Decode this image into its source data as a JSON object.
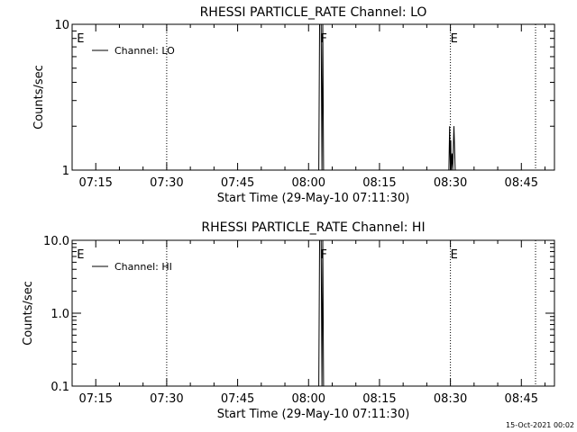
{
  "footer_timestamp": "15-Oct-2021 00:02",
  "chart_data": [
    {
      "type": "line",
      "title": "RHESSI PARTICLE_RATE Channel: LO",
      "xlabel": "Start Time (29-May-10 07:11:30)",
      "ylabel": "Counts/sec",
      "yscale": "log",
      "x_ticks": [
        "07:15",
        "07:30",
        "07:45",
        "08:00",
        "08:15",
        "08:30",
        "08:45"
      ],
      "y_ticks": [
        "1",
        "10"
      ],
      "legend_position": "top-left",
      "x_range": [
        "07:10:00",
        "08:52:00"
      ],
      "ylim": [
        1,
        10
      ],
      "series": [
        {
          "name": "Channel: LO",
          "x": [
            "08:02:10",
            "08:02:20",
            "08:02:40",
            "08:02:50",
            "08:03:00",
            "08:03:10",
            "08:29:40",
            "08:29:50",
            "08:30:00",
            "08:30:05",
            "08:30:10",
            "08:30:20",
            "08:30:30",
            "08:30:45",
            "08:31:00"
          ],
          "y": [
            1,
            10,
            10,
            1,
            10,
            1,
            1,
            2.0,
            1,
            1.6,
            1,
            1.3,
            1,
            2.0,
            1
          ]
        }
      ],
      "markers": [
        {
          "time": "07:11:00",
          "label": "E",
          "line": false
        },
        {
          "time": "07:30:00",
          "label": "",
          "line": true
        },
        {
          "time": "08:02:30",
          "label": "F",
          "line": false
        },
        {
          "time": "08:30:00",
          "label": "E",
          "line": true
        },
        {
          "time": "08:48:00",
          "label": "",
          "line": true
        }
      ]
    },
    {
      "type": "line",
      "title": "RHESSI PARTICLE_RATE Channel: HI",
      "xlabel": "Start Time (29-May-10 07:11:30)",
      "ylabel": "Counts/sec",
      "yscale": "log",
      "x_ticks": [
        "07:15",
        "07:30",
        "07:45",
        "08:00",
        "08:15",
        "08:30",
        "08:45"
      ],
      "y_ticks": [
        "0.1",
        "1.0",
        "10.0"
      ],
      "legend_position": "top-left",
      "x_range": [
        "07:10:00",
        "08:52:00"
      ],
      "ylim": [
        0.1,
        10
      ],
      "series": [
        {
          "name": "Channel: HI",
          "x": [
            "08:02:10",
            "08:02:20",
            "08:02:40",
            "08:02:50",
            "08:03:00",
            "08:03:10"
          ],
          "y": [
            0.1,
            10,
            10,
            0.1,
            10,
            0.1
          ]
        }
      ],
      "markers": [
        {
          "time": "07:11:00",
          "label": "E",
          "line": false
        },
        {
          "time": "07:30:00",
          "label": "",
          "line": true
        },
        {
          "time": "08:02:30",
          "label": "F",
          "line": false
        },
        {
          "time": "08:30:00",
          "label": "E",
          "line": true
        },
        {
          "time": "08:48:00",
          "label": "",
          "line": true
        }
      ]
    }
  ]
}
